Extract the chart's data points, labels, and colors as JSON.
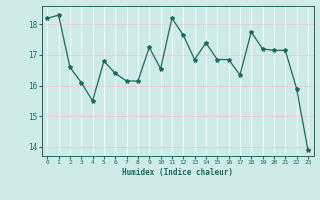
{
  "x": [
    0,
    1,
    2,
    3,
    4,
    5,
    6,
    7,
    8,
    9,
    10,
    11,
    12,
    13,
    14,
    15,
    16,
    17,
    18,
    19,
    20,
    21,
    22,
    23
  ],
  "y": [
    18.2,
    18.3,
    16.6,
    16.1,
    15.5,
    16.8,
    16.4,
    16.15,
    16.15,
    17.25,
    16.55,
    18.2,
    17.65,
    16.85,
    17.4,
    16.85,
    16.85,
    16.35,
    17.75,
    17.2,
    17.15,
    17.15,
    15.9,
    13.9
  ],
  "xlabel": "Humidex (Indice chaleur)",
  "ylim": [
    13.7,
    18.6
  ],
  "xlim": [
    -0.5,
    23.5
  ],
  "yticks": [
    14,
    15,
    16,
    17,
    18
  ],
  "xticks": [
    0,
    1,
    2,
    3,
    4,
    5,
    6,
    7,
    8,
    9,
    10,
    11,
    12,
    13,
    14,
    15,
    16,
    17,
    18,
    19,
    20,
    21,
    22,
    23
  ],
  "line_color": "#1a6b5a",
  "marker": "*",
  "bg_color": "#ceeaea",
  "grid_color": "#f0c8c8",
  "tick_color": "#1a6b5a",
  "label_color": "#1a6b5a",
  "font_family": "monospace"
}
